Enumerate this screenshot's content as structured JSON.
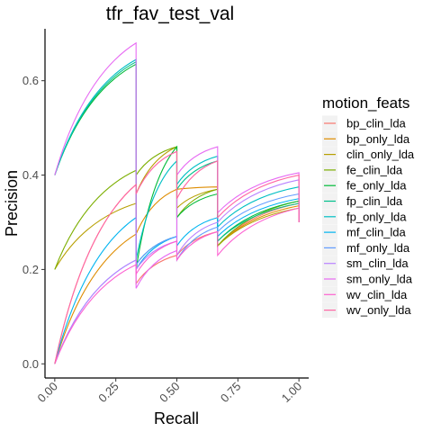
{
  "chart_data": {
    "type": "line",
    "title": "tfr_fav_test_val",
    "xlabel": "Recall",
    "ylabel": "Precision",
    "xlim": [
      -0.04,
      1.04
    ],
    "ylim": [
      -0.03,
      0.71
    ],
    "x_ticks": [
      "0.00",
      "0.25",
      "0.50",
      "0.75",
      "1.00"
    ],
    "x_tick_values": [
      0,
      0.25,
      0.5,
      0.75,
      1.0
    ],
    "y_ticks": [
      "0.0",
      "0.2",
      "0.4",
      "0.6"
    ],
    "y_tick_values": [
      0,
      0.2,
      0.4,
      0.6
    ],
    "grid": false,
    "legend_title": "motion_feats",
    "legend_position": "right",
    "series": [
      {
        "name": "bp_clin_lda",
        "color": "#F8766D",
        "points": [
          [
            0,
            0
          ],
          [
            0.333,
            0.38
          ],
          [
            0.333,
            0.17
          ],
          [
            0.5,
            0.23
          ],
          [
            0.5,
            0.23
          ],
          [
            0.667,
            0.28
          ],
          [
            0.667,
            0.25
          ],
          [
            1.0,
            0.34
          ],
          [
            1.0,
            0.3
          ]
        ]
      },
      {
        "name": "bp_only_lda",
        "color": "#DE8C00",
        "points": [
          [
            0,
            0
          ],
          [
            0.333,
            0.275
          ],
          [
            0.333,
            0.275
          ],
          [
            0.5,
            0.37
          ],
          [
            0.5,
            0.37
          ],
          [
            0.667,
            0.375
          ],
          [
            0.667,
            0.25
          ],
          [
            1.0,
            0.335
          ],
          [
            1.0,
            0.3
          ]
        ]
      },
      {
        "name": "clin_only_lda",
        "color": "#B79F00",
        "points": [
          [
            0,
            0.2
          ],
          [
            0.333,
            0.34
          ],
          [
            0.333,
            0.36
          ],
          [
            0.5,
            0.46
          ],
          [
            0.5,
            0.33
          ],
          [
            0.667,
            0.37
          ],
          [
            0.667,
            0.25
          ],
          [
            1.0,
            0.33
          ],
          [
            1.0,
            0.3
          ]
        ]
      },
      {
        "name": "fe_clin_lda",
        "color": "#7CAE00",
        "points": [
          [
            0,
            0.2
          ],
          [
            0.333,
            0.41
          ],
          [
            0.333,
            0.4
          ],
          [
            0.5,
            0.46
          ],
          [
            0.5,
            0.31
          ],
          [
            0.667,
            0.37
          ],
          [
            0.667,
            0.25
          ],
          [
            1.0,
            0.345
          ],
          [
            1.0,
            0.3
          ]
        ]
      },
      {
        "name": "fe_only_lda",
        "color": "#00BA38",
        "points": [
          [
            0,
            0.4
          ],
          [
            0.333,
            0.635
          ],
          [
            0.333,
            0.2
          ],
          [
            0.5,
            0.46
          ],
          [
            0.5,
            0.31
          ],
          [
            0.667,
            0.36
          ],
          [
            0.667,
            0.26
          ],
          [
            1.0,
            0.345
          ],
          [
            1.0,
            0.3
          ]
        ]
      },
      {
        "name": "fp_clin_lda",
        "color": "#00C08B",
        "points": [
          [
            0,
            0.4
          ],
          [
            0.333,
            0.64
          ],
          [
            0.333,
            0.21
          ],
          [
            0.5,
            0.27
          ],
          [
            0.5,
            0.37
          ],
          [
            0.667,
            0.43
          ],
          [
            0.667,
            0.26
          ],
          [
            1.0,
            0.34
          ],
          [
            1.0,
            0.3
          ]
        ]
      },
      {
        "name": "fp_only_lda",
        "color": "#00BFC4",
        "points": [
          [
            0,
            0.4
          ],
          [
            0.333,
            0.645
          ],
          [
            0.333,
            0.22
          ],
          [
            0.5,
            0.43
          ],
          [
            0.5,
            0.38
          ],
          [
            0.667,
            0.44
          ],
          [
            0.667,
            0.29
          ],
          [
            1.0,
            0.375
          ],
          [
            1.0,
            0.3
          ]
        ]
      },
      {
        "name": "mf_clin_lda",
        "color": "#00B4F0",
        "points": [
          [
            0,
            0
          ],
          [
            0.333,
            0.31
          ],
          [
            0.333,
            0.2
          ],
          [
            0.5,
            0.27
          ],
          [
            0.5,
            0.25
          ],
          [
            0.667,
            0.31
          ],
          [
            0.667,
            0.27
          ],
          [
            1.0,
            0.35
          ],
          [
            1.0,
            0.3
          ]
        ]
      },
      {
        "name": "mf_only_lda",
        "color": "#619CFF",
        "points": [
          [
            0,
            0
          ],
          [
            0.333,
            0.22
          ],
          [
            0.333,
            0.21
          ],
          [
            0.5,
            0.27
          ],
          [
            0.5,
            0.22
          ],
          [
            0.667,
            0.29
          ],
          [
            0.667,
            0.28
          ],
          [
            1.0,
            0.36
          ],
          [
            1.0,
            0.3
          ]
        ]
      },
      {
        "name": "sm_clin_lda",
        "color": "#B983FF",
        "points": [
          [
            0,
            0
          ],
          [
            0.333,
            0.22
          ],
          [
            0.333,
            0.2
          ],
          [
            0.5,
            0.26
          ],
          [
            0.5,
            0.23
          ],
          [
            0.667,
            0.3
          ],
          [
            0.667,
            0.3
          ],
          [
            1.0,
            0.39
          ],
          [
            1.0,
            0.3
          ]
        ]
      },
      {
        "name": "sm_only_lda",
        "color": "#E76BF3",
        "points": [
          [
            0,
            0.4
          ],
          [
            0.333,
            0.68
          ],
          [
            0.333,
            0.16
          ],
          [
            0.5,
            0.24
          ],
          [
            0.5,
            0.4
          ],
          [
            0.667,
            0.46
          ],
          [
            0.667,
            0.32
          ],
          [
            1.0,
            0.405
          ],
          [
            1.0,
            0.3
          ]
        ]
      },
      {
        "name": "wv_clin_lda",
        "color": "#FD61D1",
        "points": [
          [
            0,
            0
          ],
          [
            0.333,
            0.21
          ],
          [
            0.333,
            0.19
          ],
          [
            0.5,
            0.26
          ],
          [
            0.5,
            0.22
          ],
          [
            0.667,
            0.28
          ],
          [
            0.667,
            0.23
          ],
          [
            1.0,
            0.33
          ],
          [
            1.0,
            0.3
          ]
        ]
      },
      {
        "name": "wv_only_lda",
        "color": "#FF67A4",
        "points": [
          [
            0,
            0
          ],
          [
            0.333,
            0.38
          ],
          [
            0.333,
            0.36
          ],
          [
            0.5,
            0.45
          ],
          [
            0.5,
            0.35
          ],
          [
            0.667,
            0.43
          ],
          [
            0.667,
            0.31
          ],
          [
            1.0,
            0.4
          ],
          [
            1.0,
            0.3
          ]
        ]
      }
    ]
  }
}
